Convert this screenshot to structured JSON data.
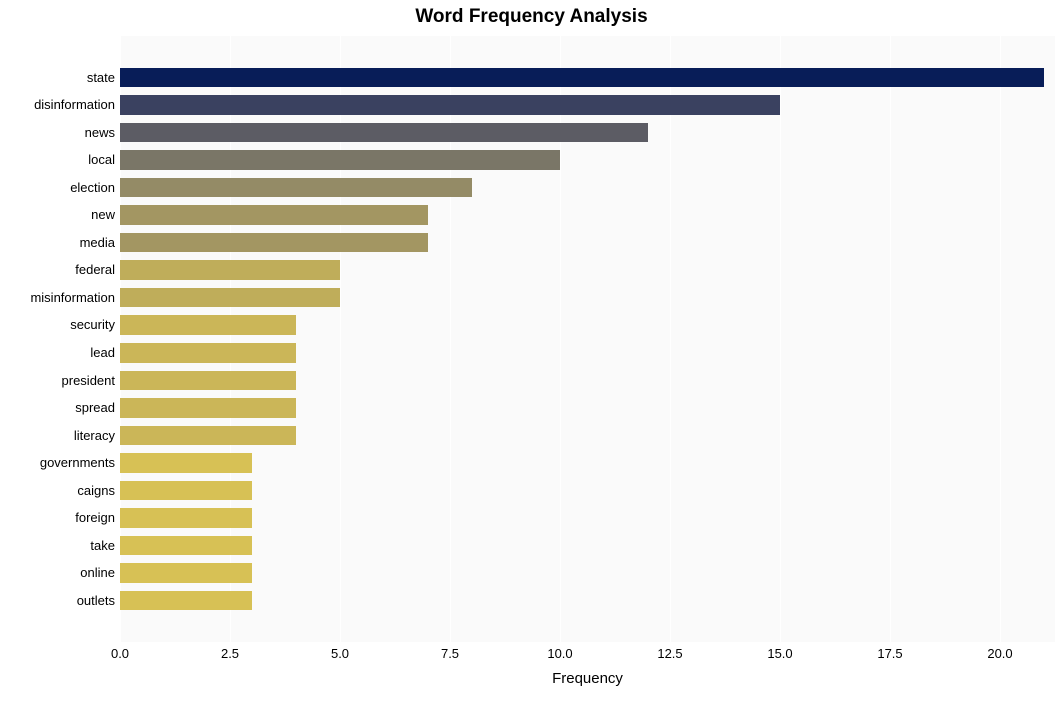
{
  "chart": {
    "type": "bar-horizontal",
    "title": "Word Frequency Analysis",
    "title_fontsize": 19,
    "title_fontweight": "bold",
    "xlabel": "Frequency",
    "xlabel_fontsize": 15,
    "background_color": "#ffffff",
    "plot_background": "#fafafa",
    "grid_color": "#ffffff",
    "xlim": [
      0,
      21.25
    ],
    "xtick_step": 2.5,
    "xticks": [
      "0.0",
      "2.5",
      "5.0",
      "7.5",
      "10.0",
      "12.5",
      "15.0",
      "17.5",
      "20.0"
    ],
    "ytick_fontsize": 13,
    "xtick_fontsize": 13,
    "bar_height_ratio": 0.71,
    "top_pad_rows": 1,
    "bottom_pad_rows": 1,
    "bars": [
      {
        "label": "state",
        "value": 21,
        "color": "#081d58"
      },
      {
        "label": "disinformation",
        "value": 15,
        "color": "#3a4160"
      },
      {
        "label": "news",
        "value": 12,
        "color": "#5c5c64"
      },
      {
        "label": "local",
        "value": 10,
        "color": "#7a7667"
      },
      {
        "label": "election",
        "value": 8,
        "color": "#948b66"
      },
      {
        "label": "new",
        "value": 7,
        "color": "#a39662"
      },
      {
        "label": "media",
        "value": 7,
        "color": "#a39662"
      },
      {
        "label": "federal",
        "value": 5,
        "color": "#bfad5a"
      },
      {
        "label": "misinformation",
        "value": 5,
        "color": "#bfad5a"
      },
      {
        "label": "security",
        "value": 4,
        "color": "#cbb658"
      },
      {
        "label": "lead",
        "value": 4,
        "color": "#cbb658"
      },
      {
        "label": "president",
        "value": 4,
        "color": "#cbb658"
      },
      {
        "label": "spread",
        "value": 4,
        "color": "#cbb658"
      },
      {
        "label": "literacy",
        "value": 4,
        "color": "#cbb658"
      },
      {
        "label": "governments",
        "value": 3,
        "color": "#d7c155"
      },
      {
        "label": "caigns",
        "value": 3,
        "color": "#d7c155"
      },
      {
        "label": "foreign",
        "value": 3,
        "color": "#d7c155"
      },
      {
        "label": "take",
        "value": 3,
        "color": "#d7c155"
      },
      {
        "label": "online",
        "value": 3,
        "color": "#d7c155"
      },
      {
        "label": "outlets",
        "value": 3,
        "color": "#d7c155"
      }
    ]
  }
}
